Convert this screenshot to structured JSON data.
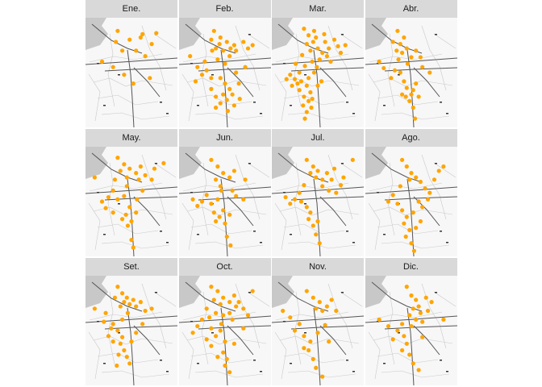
{
  "colors": {
    "strip": "#d9d9d9",
    "point": "#FFA500",
    "water": "#c8c8c8",
    "road": "#555555",
    "map_bg": "#f7f7f7"
  },
  "panels": [
    {
      "label": "Ene.",
      "points": [
        [
          0.35,
          0.12
        ],
        [
          0.48,
          0.2
        ],
        [
          0.62,
          0.15
        ],
        [
          0.72,
          0.24
        ],
        [
          0.18,
          0.4
        ],
        [
          0.55,
          0.3
        ],
        [
          0.65,
          0.35
        ],
        [
          0.3,
          0.45
        ],
        [
          0.42,
          0.52
        ],
        [
          0.7,
          0.55
        ],
        [
          0.52,
          0.6
        ],
        [
          0.6,
          0.18
        ],
        [
          0.77,
          0.14
        ],
        [
          0.4,
          0.3
        ],
        [
          0.33,
          0.22
        ]
      ]
    },
    {
      "label": "Feb.",
      "points": [
        [
          0.38,
          0.12
        ],
        [
          0.45,
          0.18
        ],
        [
          0.52,
          0.22
        ],
        [
          0.6,
          0.25
        ],
        [
          0.4,
          0.28
        ],
        [
          0.35,
          0.2
        ],
        [
          0.48,
          0.3
        ],
        [
          0.55,
          0.35
        ],
        [
          0.62,
          0.3
        ],
        [
          0.7,
          0.22
        ],
        [
          0.75,
          0.28
        ],
        [
          0.42,
          0.38
        ],
        [
          0.5,
          0.42
        ],
        [
          0.3,
          0.48
        ],
        [
          0.35,
          0.55
        ],
        [
          0.25,
          0.52
        ],
        [
          0.18,
          0.58
        ],
        [
          0.45,
          0.55
        ],
        [
          0.5,
          0.6
        ],
        [
          0.55,
          0.65
        ],
        [
          0.48,
          0.7
        ],
        [
          0.4,
          0.72
        ],
        [
          0.52,
          0.75
        ],
        [
          0.58,
          0.7
        ],
        [
          0.45,
          0.78
        ],
        [
          0.6,
          0.8
        ],
        [
          0.35,
          0.65
        ],
        [
          0.65,
          0.6
        ],
        [
          0.72,
          0.45
        ],
        [
          0.8,
          0.25
        ],
        [
          0.56,
          0.28
        ],
        [
          0.44,
          0.24
        ],
        [
          0.36,
          0.3
        ],
        [
          0.28,
          0.4
        ],
        [
          0.62,
          0.5
        ],
        [
          0.53,
          0.85
        ],
        [
          0.4,
          0.82
        ],
        [
          0.66,
          0.74
        ],
        [
          0.2,
          0.45
        ],
        [
          0.12,
          0.35
        ]
      ]
    },
    {
      "label": "Mar.",
      "points": [
        [
          0.35,
          0.1
        ],
        [
          0.4,
          0.16
        ],
        [
          0.45,
          0.22
        ],
        [
          0.5,
          0.28
        ],
        [
          0.55,
          0.32
        ],
        [
          0.42,
          0.3
        ],
        [
          0.38,
          0.24
        ],
        [
          0.48,
          0.18
        ],
        [
          0.58,
          0.22
        ],
        [
          0.62,
          0.28
        ],
        [
          0.68,
          0.2
        ],
        [
          0.72,
          0.26
        ],
        [
          0.6,
          0.35
        ],
        [
          0.52,
          0.38
        ],
        [
          0.44,
          0.4
        ],
        [
          0.36,
          0.44
        ],
        [
          0.3,
          0.5
        ],
        [
          0.25,
          0.56
        ],
        [
          0.2,
          0.52
        ],
        [
          0.32,
          0.58
        ],
        [
          0.4,
          0.55
        ],
        [
          0.46,
          0.5
        ],
        [
          0.38,
          0.62
        ],
        [
          0.42,
          0.68
        ],
        [
          0.35,
          0.72
        ],
        [
          0.4,
          0.76
        ],
        [
          0.34,
          0.8
        ],
        [
          0.38,
          0.86
        ],
        [
          0.44,
          0.74
        ],
        [
          0.3,
          0.66
        ],
        [
          0.5,
          0.62
        ],
        [
          0.54,
          0.58
        ],
        [
          0.28,
          0.6
        ],
        [
          0.22,
          0.62
        ],
        [
          0.16,
          0.56
        ],
        [
          0.64,
          0.4
        ],
        [
          0.75,
          0.32
        ],
        [
          0.8,
          0.25
        ],
        [
          0.57,
          0.15
        ],
        [
          0.46,
          0.12
        ],
        [
          0.33,
          0.34
        ],
        [
          0.26,
          0.42
        ],
        [
          0.49,
          0.45
        ],
        [
          0.43,
          0.82
        ],
        [
          0.36,
          0.92
        ]
      ]
    },
    {
      "label": "Abr.",
      "points": [
        [
          0.35,
          0.12
        ],
        [
          0.42,
          0.18
        ],
        [
          0.38,
          0.24
        ],
        [
          0.45,
          0.28
        ],
        [
          0.4,
          0.32
        ],
        [
          0.3,
          0.22
        ],
        [
          0.55,
          0.3
        ],
        [
          0.5,
          0.36
        ],
        [
          0.32,
          0.48
        ],
        [
          0.28,
          0.55
        ],
        [
          0.38,
          0.5
        ],
        [
          0.42,
          0.58
        ],
        [
          0.45,
          0.64
        ],
        [
          0.5,
          0.7
        ],
        [
          0.48,
          0.76
        ],
        [
          0.52,
          0.66
        ],
        [
          0.55,
          0.6
        ],
        [
          0.58,
          0.72
        ],
        [
          0.4,
          0.7
        ],
        [
          0.62,
          0.45
        ],
        [
          0.7,
          0.5
        ],
        [
          0.15,
          0.4
        ],
        [
          0.2,
          0.46
        ],
        [
          0.46,
          0.42
        ],
        [
          0.34,
          0.3
        ],
        [
          0.52,
          0.82
        ],
        [
          0.54,
          0.92
        ],
        [
          0.44,
          0.72
        ],
        [
          0.36,
          0.38
        ],
        [
          0.6,
          0.36
        ]
      ]
    },
    {
      "label": "May.",
      "points": [
        [
          0.35,
          0.1
        ],
        [
          0.42,
          0.16
        ],
        [
          0.48,
          0.2
        ],
        [
          0.55,
          0.24
        ],
        [
          0.45,
          0.28
        ],
        [
          0.38,
          0.22
        ],
        [
          0.6,
          0.18
        ],
        [
          0.65,
          0.26
        ],
        [
          0.72,
          0.3
        ],
        [
          0.85,
          0.15
        ],
        [
          0.3,
          0.4
        ],
        [
          0.25,
          0.46
        ],
        [
          0.35,
          0.48
        ],
        [
          0.42,
          0.45
        ],
        [
          0.48,
          0.55
        ],
        [
          0.44,
          0.62
        ],
        [
          0.5,
          0.68
        ],
        [
          0.46,
          0.72
        ],
        [
          0.4,
          0.66
        ],
        [
          0.55,
          0.6
        ],
        [
          0.3,
          0.6
        ],
        [
          0.22,
          0.56
        ],
        [
          0.18,
          0.5
        ],
        [
          0.1,
          0.28
        ],
        [
          0.5,
          0.85
        ],
        [
          0.52,
          0.92
        ],
        [
          0.62,
          0.4
        ],
        [
          0.58,
          0.3
        ],
        [
          0.45,
          0.36
        ],
        [
          0.32,
          0.3
        ],
        [
          0.75,
          0.2
        ],
        [
          0.56,
          0.48
        ]
      ]
    },
    {
      "label": "Jun.",
      "points": [
        [
          0.35,
          0.12
        ],
        [
          0.42,
          0.18
        ],
        [
          0.48,
          0.24
        ],
        [
          0.55,
          0.28
        ],
        [
          0.4,
          0.3
        ],
        [
          0.45,
          0.36
        ],
        [
          0.3,
          0.44
        ],
        [
          0.25,
          0.5
        ],
        [
          0.35,
          0.52
        ],
        [
          0.42,
          0.48
        ],
        [
          0.48,
          0.58
        ],
        [
          0.44,
          0.64
        ],
        [
          0.5,
          0.7
        ],
        [
          0.4,
          0.68
        ],
        [
          0.55,
          0.62
        ],
        [
          0.62,
          0.45
        ],
        [
          0.7,
          0.48
        ],
        [
          0.6,
          0.22
        ],
        [
          0.72,
          0.3
        ],
        [
          0.15,
          0.48
        ],
        [
          0.2,
          0.54
        ],
        [
          0.52,
          0.82
        ],
        [
          0.56,
          0.9
        ],
        [
          0.38,
          0.6
        ],
        [
          0.46,
          0.4
        ],
        [
          0.58,
          0.4
        ]
      ]
    },
    {
      "label": "Jul.",
      "points": [
        [
          0.38,
          0.12
        ],
        [
          0.45,
          0.18
        ],
        [
          0.5,
          0.22
        ],
        [
          0.42,
          0.24
        ],
        [
          0.48,
          0.28
        ],
        [
          0.55,
          0.3
        ],
        [
          0.6,
          0.24
        ],
        [
          0.68,
          0.2
        ],
        [
          0.75,
          0.35
        ],
        [
          0.7,
          0.42
        ],
        [
          0.62,
          0.4
        ],
        [
          0.3,
          0.42
        ],
        [
          0.25,
          0.48
        ],
        [
          0.2,
          0.52
        ],
        [
          0.32,
          0.5
        ],
        [
          0.38,
          0.55
        ],
        [
          0.42,
          0.6
        ],
        [
          0.4,
          0.66
        ],
        [
          0.45,
          0.72
        ],
        [
          0.5,
          0.68
        ],
        [
          0.48,
          0.8
        ],
        [
          0.52,
          0.88
        ],
        [
          0.15,
          0.46
        ],
        [
          0.35,
          0.35
        ],
        [
          0.55,
          0.36
        ],
        [
          0.65,
          0.3
        ],
        [
          0.78,
          0.28
        ],
        [
          0.88,
          0.12
        ]
      ]
    },
    {
      "label": "Ago.",
      "points": [
        [
          0.4,
          0.12
        ],
        [
          0.45,
          0.18
        ],
        [
          0.5,
          0.24
        ],
        [
          0.48,
          0.3
        ],
        [
          0.55,
          0.28
        ],
        [
          0.6,
          0.32
        ],
        [
          0.65,
          0.38
        ],
        [
          0.7,
          0.42
        ],
        [
          0.68,
          0.48
        ],
        [
          0.75,
          0.3
        ],
        [
          0.8,
          0.22
        ],
        [
          0.85,
          0.18
        ],
        [
          0.3,
          0.44
        ],
        [
          0.25,
          0.5
        ],
        [
          0.35,
          0.52
        ],
        [
          0.4,
          0.58
        ],
        [
          0.45,
          0.64
        ],
        [
          0.42,
          0.7
        ],
        [
          0.48,
          0.76
        ],
        [
          0.44,
          0.82
        ],
        [
          0.5,
          0.88
        ],
        [
          0.55,
          0.74
        ],
        [
          0.6,
          0.68
        ],
        [
          0.52,
          0.6
        ],
        [
          0.58,
          0.5
        ],
        [
          0.38,
          0.36
        ],
        [
          0.62,
          0.55
        ],
        [
          0.53,
          0.95
        ]
      ]
    },
    {
      "label": "Set.",
      "points": [
        [
          0.35,
          0.1
        ],
        [
          0.4,
          0.16
        ],
        [
          0.45,
          0.2
        ],
        [
          0.42,
          0.24
        ],
        [
          0.48,
          0.26
        ],
        [
          0.52,
          0.22
        ],
        [
          0.55,
          0.28
        ],
        [
          0.38,
          0.28
        ],
        [
          0.32,
          0.2
        ],
        [
          0.6,
          0.24
        ],
        [
          0.65,
          0.32
        ],
        [
          0.72,
          0.3
        ],
        [
          0.22,
          0.34
        ],
        [
          0.1,
          0.3
        ],
        [
          0.3,
          0.44
        ],
        [
          0.35,
          0.5
        ],
        [
          0.4,
          0.56
        ],
        [
          0.38,
          0.62
        ],
        [
          0.42,
          0.68
        ],
        [
          0.36,
          0.72
        ],
        [
          0.45,
          0.74
        ],
        [
          0.3,
          0.6
        ],
        [
          0.25,
          0.55
        ],
        [
          0.5,
          0.6
        ],
        [
          0.55,
          0.52
        ],
        [
          0.62,
          0.44
        ],
        [
          0.46,
          0.34
        ],
        [
          0.4,
          0.4
        ],
        [
          0.28,
          0.48
        ],
        [
          0.48,
          0.8
        ],
        [
          0.34,
          0.82
        ],
        [
          0.2,
          0.42
        ]
      ]
    },
    {
      "label": "Oct.",
      "points": [
        [
          0.35,
          0.1
        ],
        [
          0.42,
          0.14
        ],
        [
          0.48,
          0.2
        ],
        [
          0.55,
          0.24
        ],
        [
          0.45,
          0.26
        ],
        [
          0.38,
          0.22
        ],
        [
          0.6,
          0.18
        ],
        [
          0.65,
          0.24
        ],
        [
          0.7,
          0.3
        ],
        [
          0.75,
          0.36
        ],
        [
          0.55,
          0.34
        ],
        [
          0.48,
          0.36
        ],
        [
          0.4,
          0.34
        ],
        [
          0.3,
          0.3
        ],
        [
          0.25,
          0.4
        ],
        [
          0.35,
          0.48
        ],
        [
          0.4,
          0.55
        ],
        [
          0.3,
          0.58
        ],
        [
          0.45,
          0.5
        ],
        [
          0.5,
          0.6
        ],
        [
          0.48,
          0.7
        ],
        [
          0.42,
          0.74
        ],
        [
          0.5,
          0.82
        ],
        [
          0.55,
          0.88
        ],
        [
          0.6,
          0.62
        ],
        [
          0.7,
          0.48
        ],
        [
          0.8,
          0.14
        ],
        [
          0.2,
          0.46
        ],
        [
          0.15,
          0.52
        ],
        [
          0.58,
          0.4
        ],
        [
          0.35,
          0.64
        ],
        [
          0.46,
          0.44
        ],
        [
          0.52,
          0.76
        ],
        [
          0.62,
          0.28
        ],
        [
          0.33,
          0.38
        ]
      ]
    },
    {
      "label": "Nov.",
      "points": [
        [
          0.38,
          0.14
        ],
        [
          0.45,
          0.2
        ],
        [
          0.52,
          0.24
        ],
        [
          0.6,
          0.28
        ],
        [
          0.55,
          0.32
        ],
        [
          0.48,
          0.3
        ],
        [
          0.65,
          0.22
        ],
        [
          0.7,
          0.32
        ],
        [
          0.3,
          0.44
        ],
        [
          0.25,
          0.5
        ],
        [
          0.35,
          0.55
        ],
        [
          0.42,
          0.6
        ],
        [
          0.4,
          0.68
        ],
        [
          0.2,
          0.38
        ],
        [
          0.12,
          0.32
        ],
        [
          0.58,
          0.45
        ],
        [
          0.5,
          0.52
        ],
        [
          0.45,
          0.76
        ],
        [
          0.35,
          0.66
        ],
        [
          0.62,
          0.6
        ],
        [
          0.48,
          0.84
        ],
        [
          0.55,
          0.92
        ]
      ]
    },
    {
      "label": "Dic.",
      "points": [
        [
          0.45,
          0.1
        ],
        [
          0.5,
          0.18
        ],
        [
          0.55,
          0.22
        ],
        [
          0.58,
          0.28
        ],
        [
          0.52,
          0.3
        ],
        [
          0.6,
          0.34
        ],
        [
          0.48,
          0.36
        ],
        [
          0.62,
          0.42
        ],
        [
          0.55,
          0.4
        ],
        [
          0.68,
          0.32
        ],
        [
          0.4,
          0.44
        ],
        [
          0.35,
          0.5
        ],
        [
          0.42,
          0.55
        ],
        [
          0.45,
          0.62
        ],
        [
          0.4,
          0.68
        ],
        [
          0.48,
          0.72
        ],
        [
          0.52,
          0.8
        ],
        [
          0.58,
          0.86
        ],
        [
          0.3,
          0.58
        ],
        [
          0.25,
          0.46
        ],
        [
          0.15,
          0.4
        ],
        [
          0.85,
          0.4
        ],
        [
          0.72,
          0.24
        ],
        [
          0.5,
          0.46
        ],
        [
          0.62,
          0.56
        ],
        [
          0.66,
          0.2
        ]
      ]
    }
  ]
}
